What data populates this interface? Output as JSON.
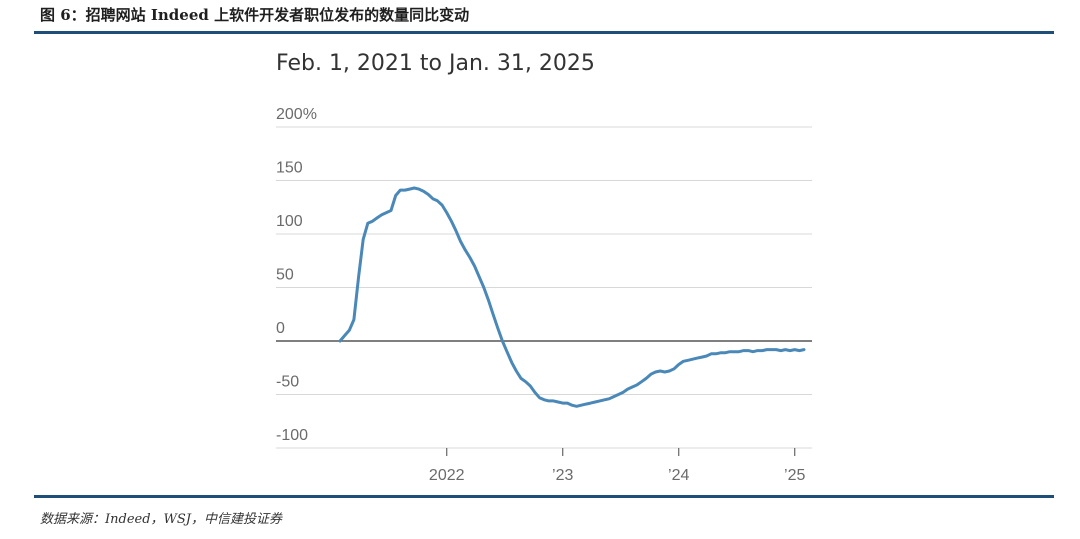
{
  "figure": {
    "title": "图 6：招聘网站 Indeed 上软件开发者职位发布的数量同比变动",
    "source": "数据来源：Indeed，WSJ，中信建投证券",
    "rule_color": "#1f4e79"
  },
  "chart_data": {
    "type": "line",
    "title": "Feb. 1, 2021 to Jan. 31, 2025",
    "xlabel": "",
    "ylabel": "",
    "ylim": [
      -100,
      200
    ],
    "y_ticks": [
      {
        "value": 200,
        "label": "200%"
      },
      {
        "value": 150,
        "label": "150"
      },
      {
        "value": 100,
        "label": "100"
      },
      {
        "value": 50,
        "label": "50"
      },
      {
        "value": 0,
        "label": "0"
      },
      {
        "value": -50,
        "label": "-50"
      },
      {
        "value": -100,
        "label": "-100"
      }
    ],
    "x_ticks": [
      {
        "value": 2022.0,
        "label": "2022"
      },
      {
        "value": 2023.0,
        "label": "’23"
      },
      {
        "value": 2024.0,
        "label": "’24"
      },
      {
        "value": 2025.0,
        "label": "’25"
      }
    ],
    "xlim": [
      2021.08,
      2025.08
    ],
    "grid": true,
    "line_color": "#4a88b8",
    "series": [
      {
        "values_x": [
          2021.08,
          2021.12,
          2021.16,
          2021.2,
          2021.24,
          2021.28,
          2021.32,
          2021.36,
          2021.4,
          2021.44,
          2021.48,
          2021.52,
          2021.56,
          2021.6,
          2021.64,
          2021.68,
          2021.72,
          2021.76,
          2021.8,
          2021.84,
          2021.88,
          2021.92,
          2021.96,
          2022.0,
          2022.04,
          2022.08,
          2022.12,
          2022.16,
          2022.2,
          2022.24,
          2022.28,
          2022.32,
          2022.36,
          2022.4,
          2022.44,
          2022.48,
          2022.52,
          2022.56,
          2022.6,
          2022.64,
          2022.68,
          2022.72,
          2022.76,
          2022.8,
          2022.84,
          2022.88,
          2022.92,
          2022.96,
          2023.0,
          2023.04,
          2023.08,
          2023.12,
          2023.16,
          2023.2,
          2023.24,
          2023.28,
          2023.32,
          2023.36,
          2023.4,
          2023.44,
          2023.48,
          2023.52,
          2023.56,
          2023.6,
          2023.64,
          2023.68,
          2023.72,
          2023.76,
          2023.8,
          2023.84,
          2023.88,
          2023.92,
          2023.96,
          2024.0,
          2024.04,
          2024.08,
          2024.12,
          2024.16,
          2024.2,
          2024.24,
          2024.28,
          2024.32,
          2024.36,
          2024.4,
          2024.44,
          2024.48,
          2024.52,
          2024.56,
          2024.6,
          2024.64,
          2024.68,
          2024.72,
          2024.76,
          2024.8,
          2024.84,
          2024.88,
          2024.92,
          2024.96,
          2025.0,
          2025.04,
          2025.08
        ],
        "values_y": [
          0,
          5,
          10,
          20,
          60,
          95,
          110,
          112,
          115,
          118,
          120,
          122,
          136,
          141,
          141,
          142,
          143,
          142,
          140,
          137,
          133,
          131,
          127,
          120,
          112,
          103,
          93,
          85,
          78,
          70,
          60,
          50,
          38,
          25,
          12,
          0,
          -10,
          -20,
          -28,
          -35,
          -38,
          -42,
          -48,
          -53,
          -55,
          -56,
          -56,
          -57,
          -58,
          -58,
          -60,
          -61,
          -60,
          -59,
          -58,
          -57,
          -56,
          -55,
          -54,
          -52,
          -50,
          -48,
          -45,
          -43,
          -41,
          -38,
          -35,
          -31,
          -29,
          -28,
          -29,
          -28,
          -26,
          -22,
          -19,
          -18,
          -17,
          -16,
          -15,
          -14,
          -12,
          -12,
          -11,
          -11,
          -10,
          -10,
          -10,
          -9,
          -9,
          -10,
          -9,
          -9,
          -8,
          -8,
          -8,
          -9,
          -8,
          -9,
          -8,
          -9,
          -8
        ]
      }
    ]
  }
}
